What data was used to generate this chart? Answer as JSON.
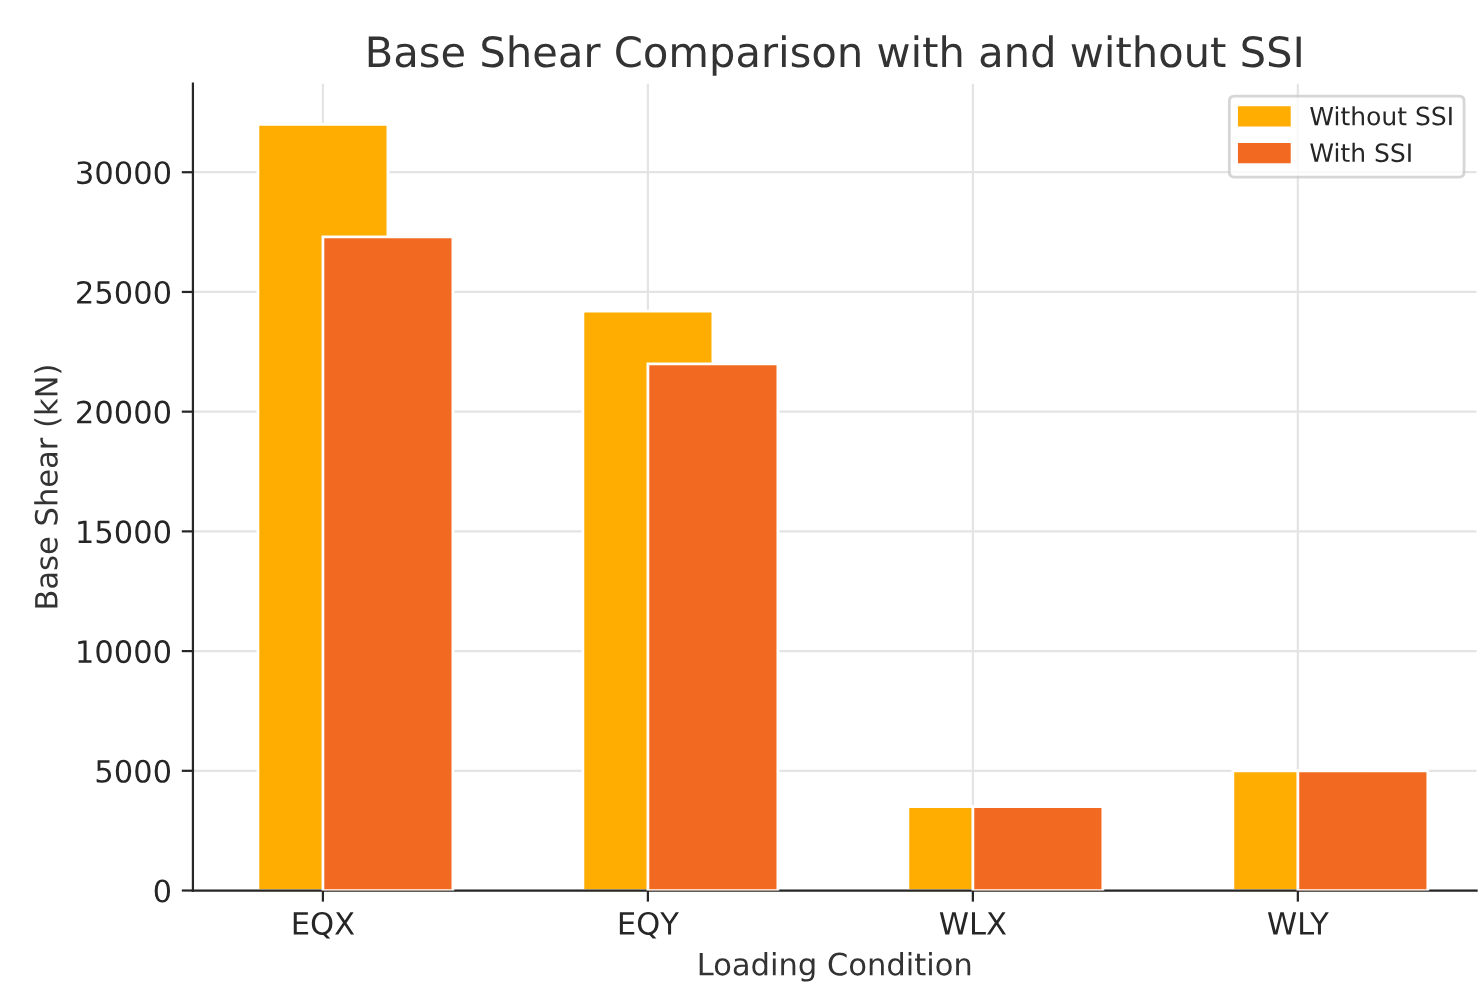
{
  "chart_data": {
    "type": "bar",
    "title": "Base Shear Comparison with and without SSI",
    "xlabel": "Loading Condition",
    "ylabel": "Base Shear (kN)",
    "categories": [
      "EQX",
      "EQY",
      "WLX",
      "WLY"
    ],
    "series": [
      {
        "name": "Without SSI",
        "color": "#ffad00",
        "values": [
          32000,
          24200,
          3500,
          5000
        ]
      },
      {
        "name": "With SSI",
        "color": "#f26a21",
        "values": [
          27300,
          22000,
          3500,
          5000
        ]
      }
    ],
    "ylim": [
      0,
      33700
    ],
    "yticks": [
      0,
      5000,
      10000,
      15000,
      20000,
      25000,
      30000
    ],
    "grid": true,
    "legend": "top right"
  }
}
